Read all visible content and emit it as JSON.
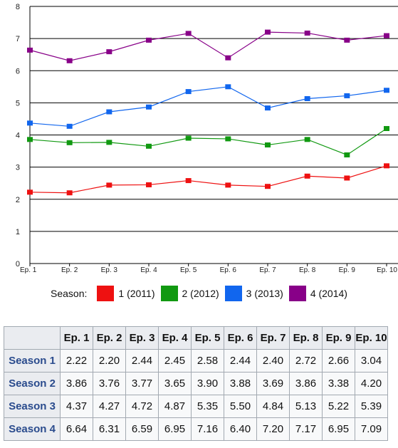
{
  "chart_data": {
    "type": "line",
    "categories": [
      "Ep. 1",
      "Ep. 2",
      "Ep. 3",
      "Ep. 4",
      "Ep. 5",
      "Ep. 6",
      "Ep. 7",
      "Ep. 8",
      "Ep. 9",
      "Ep. 10"
    ],
    "ylim": [
      0,
      8
    ],
    "yticks": [
      0,
      1,
      2,
      3,
      4,
      5,
      6,
      7,
      8
    ],
    "grid": true,
    "legend_position": "bottom",
    "legend_title": "Season:",
    "series": [
      {
        "name": "1 (2011)",
        "color": "#ee1111",
        "values": [
          2.22,
          2.2,
          2.44,
          2.45,
          2.58,
          2.44,
          2.4,
          2.72,
          2.66,
          3.04
        ]
      },
      {
        "name": "2 (2012)",
        "color": "#119911",
        "values": [
          3.86,
          3.76,
          3.77,
          3.65,
          3.9,
          3.88,
          3.69,
          3.86,
          3.38,
          4.2
        ]
      },
      {
        "name": "3 (2013)",
        "color": "#1166ee",
        "values": [
          4.37,
          4.27,
          4.72,
          4.87,
          5.35,
          5.5,
          4.84,
          5.13,
          5.22,
          5.39
        ]
      },
      {
        "name": "4 (2014)",
        "color": "#880088",
        "values": [
          6.64,
          6.31,
          6.59,
          6.95,
          7.16,
          6.4,
          7.2,
          7.17,
          6.95,
          7.09
        ]
      }
    ]
  },
  "table": {
    "columns": [
      "Ep. 1",
      "Ep. 2",
      "Ep. 3",
      "Ep. 4",
      "Ep. 5",
      "Ep. 6",
      "Ep. 7",
      "Ep. 8",
      "Ep. 9",
      "Ep. 10"
    ],
    "rows": [
      {
        "label": "Season 1",
        "cells": [
          "2.22",
          "2.20",
          "2.44",
          "2.45",
          "2.58",
          "2.44",
          "2.40",
          "2.72",
          "2.66",
          "3.04"
        ]
      },
      {
        "label": "Season 2",
        "cells": [
          "3.86",
          "3.76",
          "3.77",
          "3.65",
          "3.90",
          "3.88",
          "3.69",
          "3.86",
          "3.38",
          "4.20"
        ]
      },
      {
        "label": "Season 3",
        "cells": [
          "4.37",
          "4.27",
          "4.72",
          "4.87",
          "5.35",
          "5.50",
          "4.84",
          "5.13",
          "5.22",
          "5.39"
        ]
      },
      {
        "label": "Season 4",
        "cells": [
          "6.64",
          "6.31",
          "6.59",
          "6.95",
          "7.16",
          "6.40",
          "7.20",
          "7.17",
          "6.95",
          "7.09"
        ]
      }
    ]
  }
}
